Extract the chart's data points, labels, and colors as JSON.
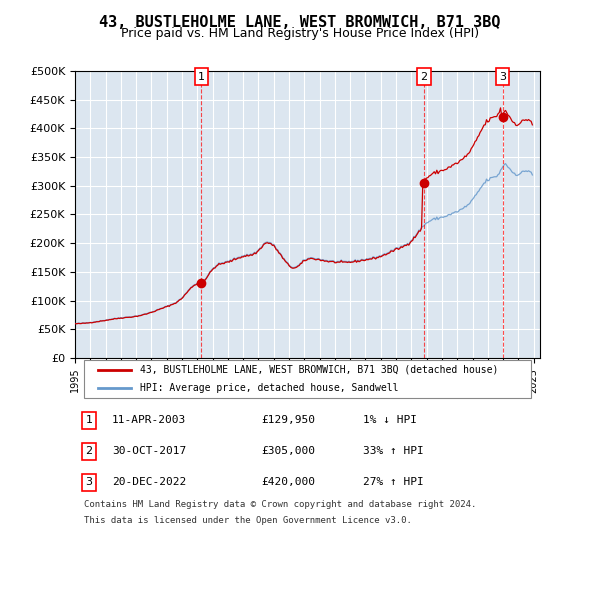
{
  "title": "43, BUSTLEHOLME LANE, WEST BROMWICH, B71 3BQ",
  "subtitle": "Price paid vs. HM Land Registry's House Price Index (HPI)",
  "background_color": "#dce6f0",
  "plot_bg_color": "#dce6f0",
  "hpi_line_color": "#6699cc",
  "price_line_color": "#cc0000",
  "marker_color": "#cc0000",
  "sale_dates": [
    "2003-04-11",
    "2017-10-30",
    "2022-12-20"
  ],
  "sale_prices": [
    129950,
    305000,
    420000
  ],
  "sale_labels": [
    "1",
    "2",
    "3"
  ],
  "legend_property": "43, BUSTLEHOLME LANE, WEST BROMWICH, B71 3BQ (detached house)",
  "legend_hpi": "HPI: Average price, detached house, Sandwell",
  "table_entries": [
    {
      "label": "1",
      "date": "11-APR-2003",
      "price": "£129,950",
      "change": "1% ↓ HPI"
    },
    {
      "label": "2",
      "date": "30-OCT-2017",
      "price": "£305,000",
      "change": "33% ↑ HPI"
    },
    {
      "label": "3",
      "date": "20-DEC-2022",
      "price": "£420,000",
      "change": "27% ↑ HPI"
    }
  ],
  "footnote1": "Contains HM Land Registry data © Crown copyright and database right 2024.",
  "footnote2": "This data is licensed under the Open Government Licence v3.0.",
  "ylim": [
    0,
    500000
  ],
  "yticks": [
    0,
    50000,
    100000,
    150000,
    200000,
    250000,
    300000,
    350000,
    400000,
    450000,
    500000
  ],
  "xstart_year": 1995,
  "xend_year": 2025
}
